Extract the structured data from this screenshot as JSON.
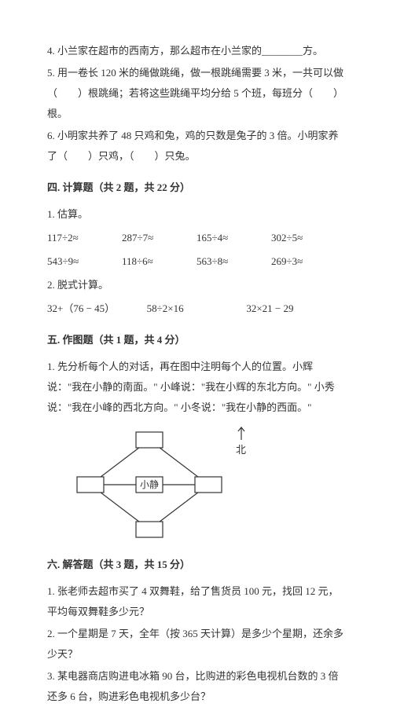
{
  "fill": {
    "q4": "4. 小兰家在超市的西南方，那么超市在小兰家的________方。",
    "q5": "5. 用一卷长 120 米的绳做跳绳，做一根跳绳需要 3 米，一共可以做（　　）根跳绳；若将这些跳绳平均分给 5 个班，每班分（　　）根。",
    "q6": "6. 小明家共养了 48 只鸡和兔，鸡的只数是兔子的 3 倍。小明家养了（　　）只鸡，（　　）只兔。"
  },
  "section4": {
    "title": "四. 计算题（共 2 题，共 22 分）",
    "q1_label": "1. 估算。",
    "row1": [
      "117÷2≈",
      "287÷7≈",
      "165÷4≈",
      "302÷5≈"
    ],
    "row2": [
      "543÷9≈",
      "118÷6≈",
      "563÷8≈",
      "269÷3≈"
    ],
    "q2_label": "2. 脱式计算。",
    "row3": [
      "32+（76 − 45）",
      "58÷2×16",
      "32×21 − 29"
    ]
  },
  "section5": {
    "title": "五. 作图题（共 1 题，共 4 分）",
    "q1": "1. 先分析每个人的对话，再在图中注明每个人的位置。小辉说：\"我在小静的南面。\" 小峰说：\"我在小辉的东北方向。\" 小秀说：\"我在小峰的西北方向。\" 小冬说：\"我在小静的西面。\"",
    "north": "北",
    "center_label": "小静"
  },
  "section6": {
    "title": "六. 解答题（共 3 题，共 15 分）",
    "q1": "1. 张老师去超市买了 4 双舞鞋，给了售货员 100 元，找回 12 元，平均每双舞鞋多少元？",
    "q2": "2. 一个星期是 7 天，全年（按 365 天计算）是多少个星期，还余多少天？",
    "q3": "3. 某电器商店购进电冰箱 90 台，比购进的彩色电视机台数的 3 倍还多 6 台，购进彩色电视机多少台？"
  },
  "diagram": {
    "stroke": "#333",
    "fill": "#ffffff",
    "center_fill": "#ffffff"
  }
}
